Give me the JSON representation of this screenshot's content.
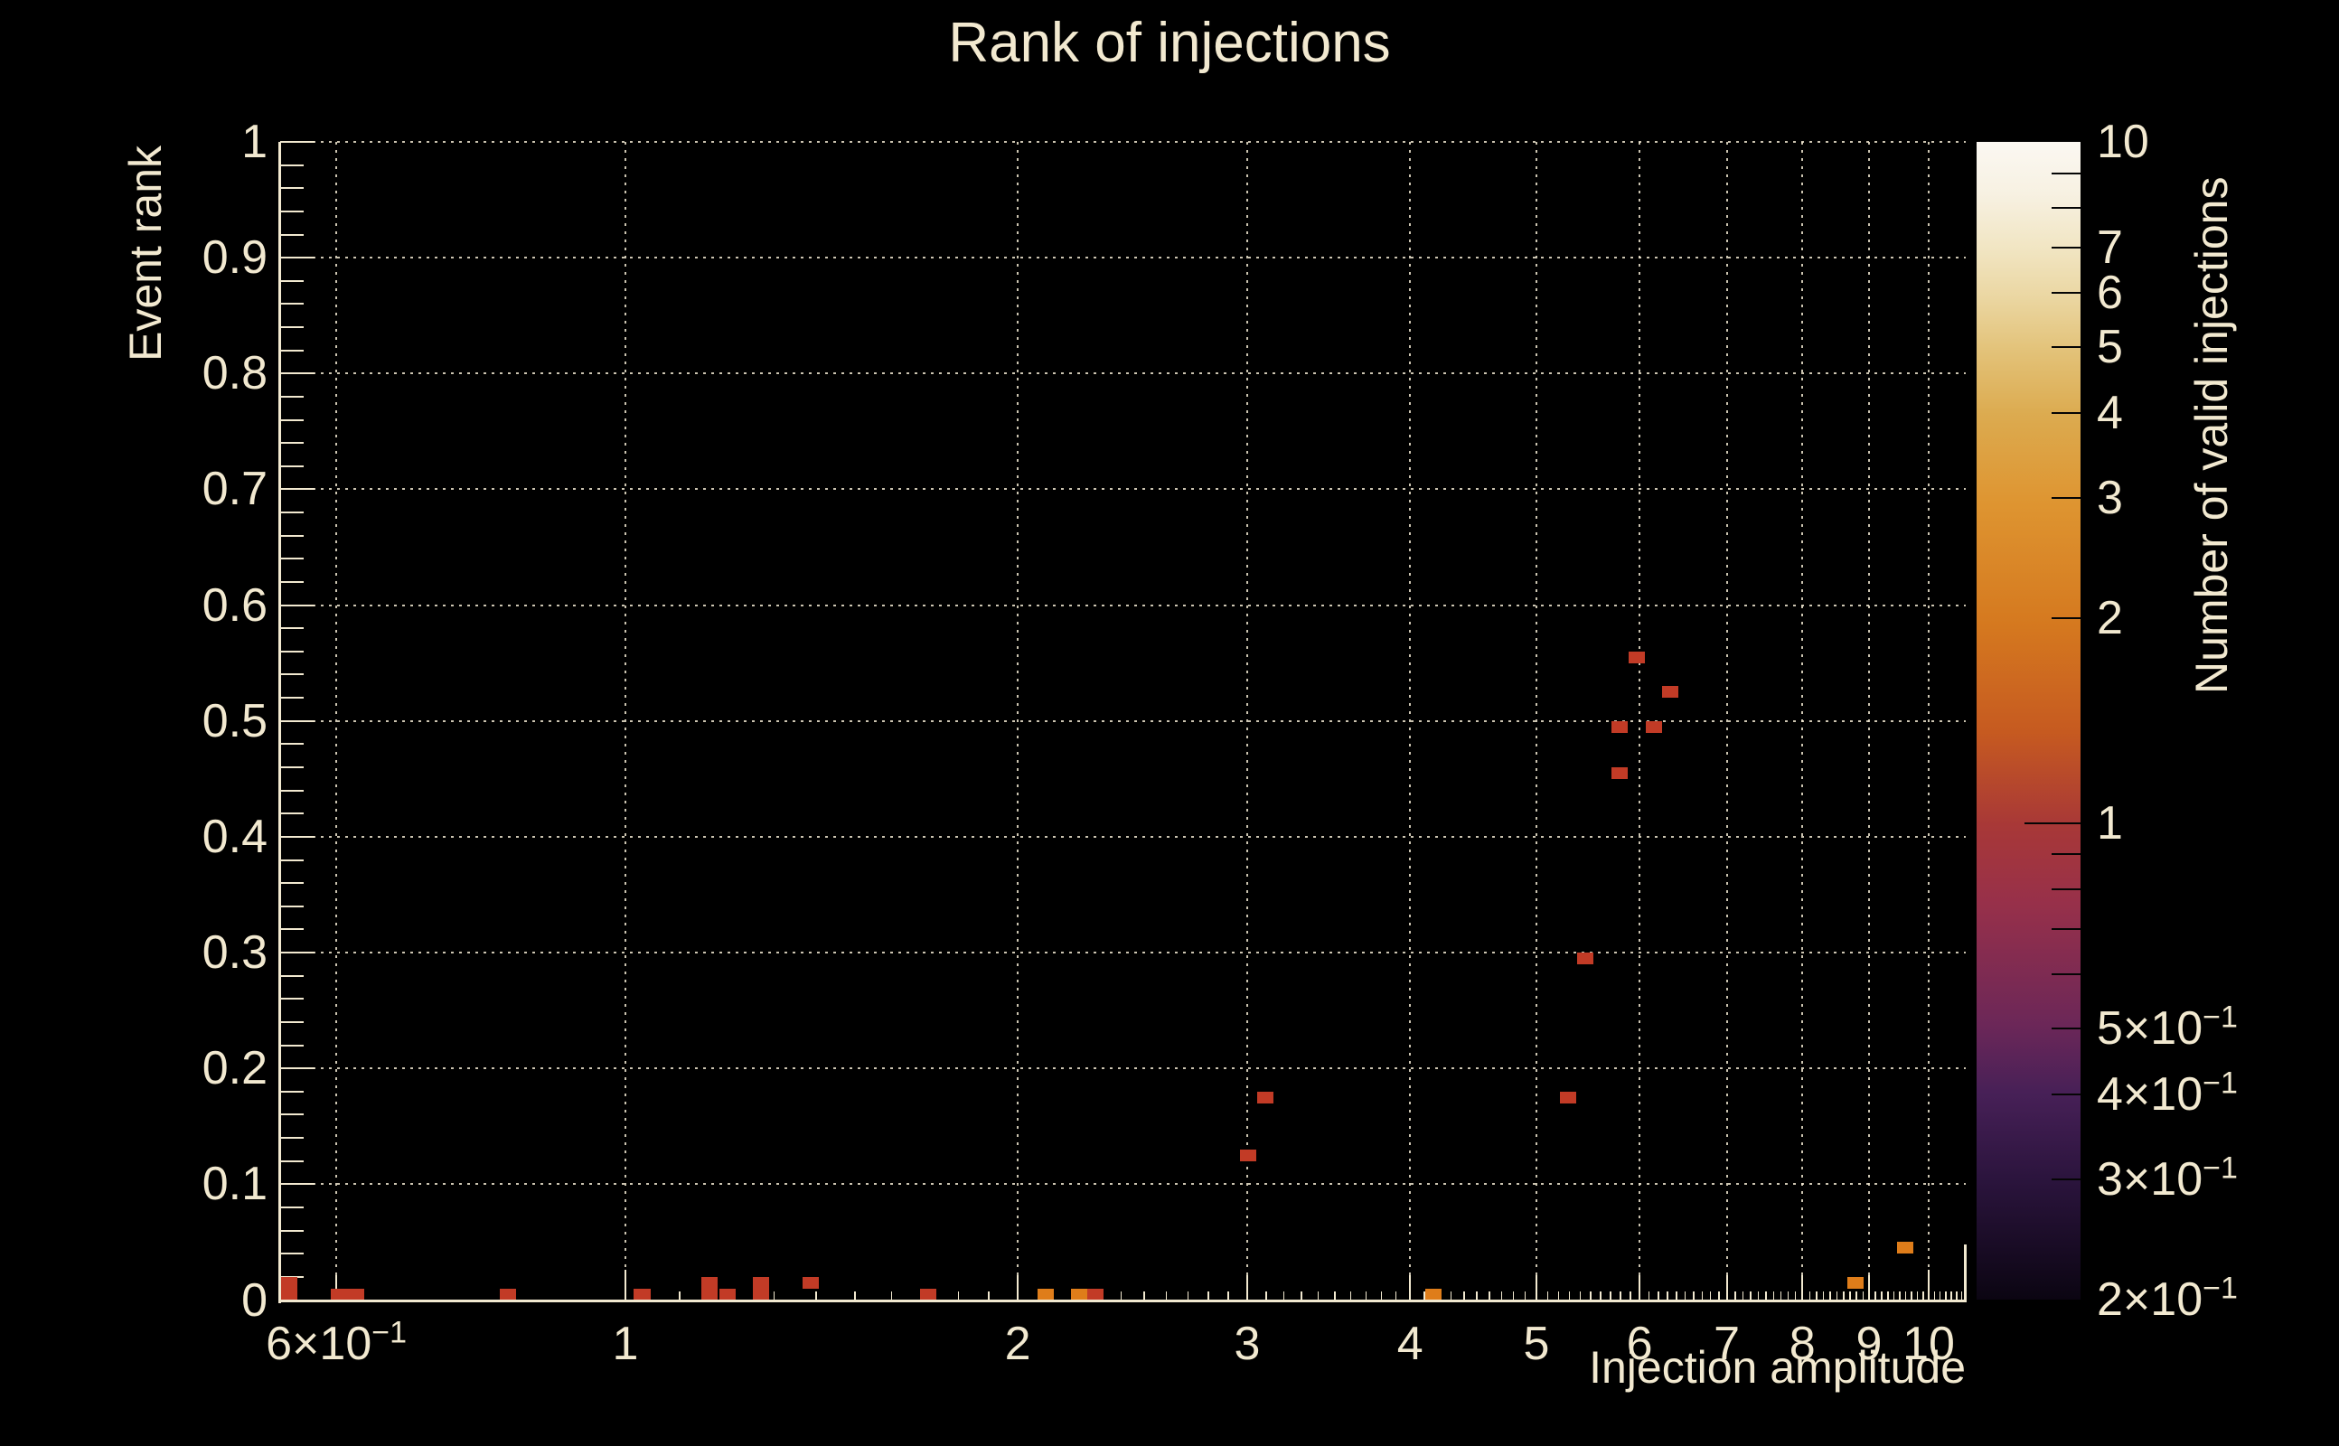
{
  "title": "Rank of injections",
  "axes": {
    "x_title": "Injection amplitude",
    "y_title": "Event rank",
    "z_title": "Number of valid injections"
  },
  "palette": {
    "background": "#000000",
    "foreground": "#f2e9d0",
    "count_1_color": "#c23b26",
    "count_2_color": "#df7d1a"
  },
  "chart_data": {
    "type": "heatmap",
    "title": "Rank of injections",
    "xlabel": "Injection amplitude",
    "ylabel": "Event rank",
    "zlabel": "Number of valid injections",
    "x_scale": "log",
    "x_range": [
      0.545,
      10.67
    ],
    "y_range": [
      0,
      1
    ],
    "z_scale": "log",
    "z_range": [
      0.2,
      10
    ],
    "grid": true,
    "x_ticks": [
      {
        "v": 0.6,
        "label": "6×10^−1"
      },
      {
        "v": 1,
        "label": "1"
      },
      {
        "v": 2,
        "label": "2"
      },
      {
        "v": 3,
        "label": "3"
      },
      {
        "v": 4,
        "label": "4"
      },
      {
        "v": 5,
        "label": "5"
      },
      {
        "v": 6,
        "label": "6"
      },
      {
        "v": 7,
        "label": "7"
      },
      {
        "v": 8,
        "label": "8"
      },
      {
        "v": 9,
        "label": "9"
      },
      {
        "v": 10,
        "label": "10"
      }
    ],
    "y_ticks": [
      {
        "v": 0,
        "label": "0"
      },
      {
        "v": 0.1,
        "label": "0.1"
      },
      {
        "v": 0.2,
        "label": "0.2"
      },
      {
        "v": 0.3,
        "label": "0.3"
      },
      {
        "v": 0.4,
        "label": "0.4"
      },
      {
        "v": 0.5,
        "label": "0.5"
      },
      {
        "v": 0.6,
        "label": "0.6"
      },
      {
        "v": 0.7,
        "label": "0.7"
      },
      {
        "v": 0.8,
        "label": "0.8"
      },
      {
        "v": 0.9,
        "label": "0.9"
      },
      {
        "v": 1,
        "label": "1"
      }
    ],
    "z_ticks": [
      {
        "v": 10,
        "label": "10"
      },
      {
        "v": 7,
        "label": "7"
      },
      {
        "v": 6,
        "label": "6"
      },
      {
        "v": 5,
        "label": "5"
      },
      {
        "v": 4,
        "label": "4"
      },
      {
        "v": 3,
        "label": "3"
      },
      {
        "v": 2,
        "label": "2"
      },
      {
        "v": 1,
        "label": "1"
      },
      {
        "v": 0.5,
        "label": "5×10^−1"
      },
      {
        "v": 0.4,
        "label": "4×10^−1"
      },
      {
        "v": 0.3,
        "label": "3×10^−1"
      },
      {
        "v": 0.2,
        "label": "2×10^−1"
      }
    ],
    "bin_size": {
      "x_decades": 0.0125,
      "rank": 0.01
    },
    "points": [
      {
        "x": 0.552,
        "rank": 0.01,
        "n": 1,
        "h": 2
      },
      {
        "x": 0.612,
        "rank": 0.005,
        "n": 1,
        "w": 2
      },
      {
        "x": 0.812,
        "rank": 0.005,
        "n": 1
      },
      {
        "x": 1.03,
        "rank": 0.005,
        "n": 1
      },
      {
        "x": 1.16,
        "rank": 0.01,
        "n": 1,
        "h": 2
      },
      {
        "x": 1.197,
        "rank": 0.005,
        "n": 1
      },
      {
        "x": 1.27,
        "rank": 0.01,
        "n": 1,
        "h": 2
      },
      {
        "x": 1.387,
        "rank": 0.015,
        "n": 1
      },
      {
        "x": 1.708,
        "rank": 0.005,
        "n": 1
      },
      {
        "x": 2.102,
        "rank": 0.005,
        "n": 2
      },
      {
        "x": 2.23,
        "rank": 0.005,
        "n": 2
      },
      {
        "x": 2.295,
        "rank": 0.005,
        "n": 1
      },
      {
        "x": 4.17,
        "rank": 0.005,
        "n": 2
      },
      {
        "x": 8.78,
        "rank": 0.015,
        "n": 2
      },
      {
        "x": 9.59,
        "rank": 0.045,
        "n": 2
      },
      {
        "x": 3.005,
        "rank": 0.125,
        "n": 1
      },
      {
        "x": 3.096,
        "rank": 0.175,
        "n": 1
      },
      {
        "x": 5.29,
        "rank": 0.175,
        "n": 1
      },
      {
        "x": 5.45,
        "rank": 0.295,
        "n": 1
      },
      {
        "x": 5.79,
        "rank": 0.455,
        "n": 1
      },
      {
        "x": 5.79,
        "rank": 0.495,
        "n": 1
      },
      {
        "x": 6.15,
        "rank": 0.495,
        "n": 1
      },
      {
        "x": 5.97,
        "rank": 0.555,
        "n": 1
      },
      {
        "x": 6.33,
        "rank": 0.525,
        "n": 1
      }
    ],
    "colorbar_stops": [
      {
        "pos": 0.0,
        "color": "#fbf8f2"
      },
      {
        "pos": 0.045,
        "color": "#f7f1e2"
      },
      {
        "pos": 0.093,
        "color": "#f1e5c2"
      },
      {
        "pos": 0.133,
        "color": "#ebd7a3"
      },
      {
        "pos": 0.179,
        "color": "#e3c37a"
      },
      {
        "pos": 0.235,
        "color": "#dcab50"
      },
      {
        "pos": 0.311,
        "color": "#de9531"
      },
      {
        "pos": 0.416,
        "color": "#d5791f"
      },
      {
        "pos": 0.51,
        "color": "#c65a20"
      },
      {
        "pos": 0.59,
        "color": "#a83837"
      },
      {
        "pos": 0.658,
        "color": "#97304a"
      },
      {
        "pos": 0.764,
        "color": "#6b2758"
      },
      {
        "pos": 0.822,
        "color": "#472057"
      },
      {
        "pos": 0.896,
        "color": "#2b143d"
      },
      {
        "pos": 1.0,
        "color": "#0b0512"
      }
    ],
    "legend_position": "right-colorbar"
  }
}
